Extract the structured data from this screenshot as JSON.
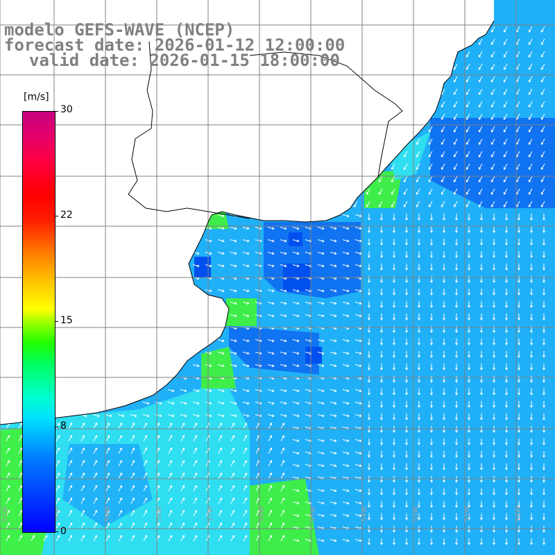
{
  "header": {
    "line1": "modelo GEFS-WAVE (NCEP)",
    "line2": "forecast date: 2026-01-12 12:00:00",
    "line3": "valid date: 2026-01-15 18:00:00"
  },
  "colorbar": {
    "units": "[m/s]",
    "ticks": [
      "30",
      "22",
      "15",
      "8",
      "0"
    ],
    "tick_values": [
      30,
      22,
      15,
      8,
      0
    ],
    "min": 0,
    "max": 30,
    "palette": [
      "#0000ff",
      "#0080ff",
      "#00e0ff",
      "#00ff60",
      "#20ff00",
      "#ffff00",
      "#ff8000",
      "#ff0000",
      "#c80080"
    ]
  },
  "map": {
    "variable": "wind speed and direction",
    "field_colors": {
      "ocean_blue": "#1070f0",
      "ocean_light": "#20b0f8",
      "ocean_cyan": "#30e0f0",
      "ocean_green": "#40f040",
      "land": "#ffffff",
      "grid": "#808080",
      "coast": "#000000",
      "arrows": "#ffffff"
    },
    "bottom_longitude_labels": [
      "61W",
      "60W",
      "59W",
      "58W",
      "57W",
      "56W",
      "55W",
      "54W",
      "53W",
      "52W",
      "51W",
      "50W"
    ]
  }
}
